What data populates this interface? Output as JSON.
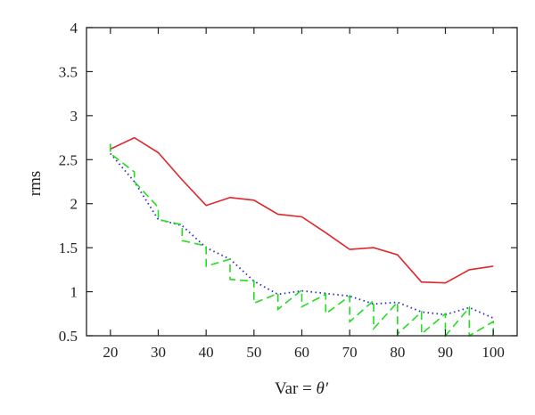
{
  "chart_data": {
    "type": "line",
    "title": "",
    "xlabel_main": "Var = ",
    "xlabel_symbol": "θ′",
    "ylabel": "rms",
    "xlim": [
      15,
      105
    ],
    "ylim": [
      0.5,
      4
    ],
    "xticks": [
      20,
      30,
      40,
      50,
      60,
      70,
      80,
      90,
      100
    ],
    "yticks": [
      0.5,
      1,
      1.5,
      2,
      2.5,
      3,
      3.5,
      4
    ],
    "ytick_labels": [
      "0.5",
      "1",
      "1.5",
      "2",
      "2.5",
      "3",
      "3.5",
      "4"
    ],
    "grid": false,
    "legend": "none",
    "series": [
      {
        "color": "#e0262a",
        "style": "solid",
        "x": [
          20,
          25,
          30,
          35,
          40,
          45,
          50,
          55,
          60,
          65,
          70,
          75,
          80,
          85,
          90,
          95,
          100
        ],
        "y": [
          2.62,
          2.75,
          2.58,
          2.27,
          1.98,
          2.07,
          2.04,
          1.88,
          1.85,
          1.67,
          1.48,
          1.5,
          1.42,
          1.11,
          1.1,
          1.25,
          1.29
        ]
      },
      {
        "color": "#2a2ac8",
        "style": "dotted",
        "x": [
          20,
          25,
          30,
          35,
          40,
          45,
          50,
          55,
          60,
          65,
          70,
          75,
          80,
          85,
          90,
          95,
          100
        ],
        "y": [
          2.57,
          2.25,
          1.82,
          1.75,
          1.5,
          1.37,
          1.12,
          0.97,
          1.01,
          0.98,
          0.95,
          0.86,
          0.88,
          0.77,
          0.74,
          0.82,
          0.7
        ]
      },
      {
        "color": "#22dd22",
        "style": "dashed",
        "x": [
          20,
          20,
          25,
          25,
          30,
          30,
          35,
          35,
          40,
          40,
          45,
          45,
          50,
          50,
          55,
          55,
          60,
          60,
          65,
          65,
          70,
          70,
          75,
          75,
          80,
          80,
          85,
          85,
          90,
          90,
          95,
          95,
          100,
          100
        ],
        "y": [
          2.68,
          2.57,
          2.36,
          2.25,
          1.96,
          1.82,
          1.76,
          1.58,
          1.52,
          1.29,
          1.37,
          1.14,
          1.12,
          0.87,
          0.98,
          0.8,
          1.02,
          0.83,
          0.97,
          0.75,
          0.95,
          0.66,
          0.9,
          0.58,
          0.88,
          0.52,
          0.77,
          0.52,
          0.75,
          0.5,
          0.82,
          0.5,
          0.66,
          0.5
        ]
      }
    ]
  }
}
